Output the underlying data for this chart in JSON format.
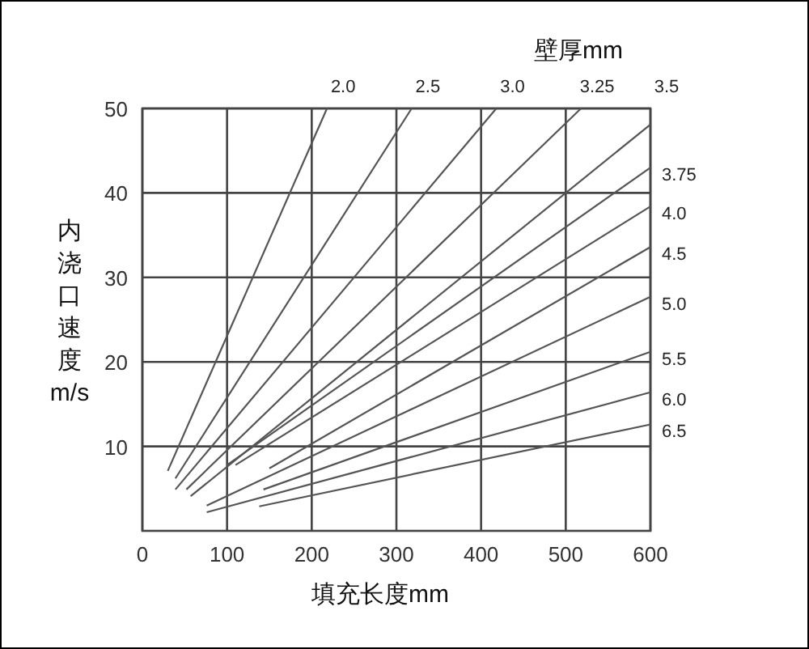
{
  "chart_data": {
    "type": "line",
    "xlabel": "填充长度mm",
    "ylabel": "内浇口速度m/s",
    "legend_title": "壁厚mm",
    "xlim": [
      0,
      600
    ],
    "xticks": [
      0,
      100,
      200,
      300,
      400,
      500,
      600
    ],
    "ylim": [
      0,
      50
    ],
    "yticks": [
      10,
      20,
      30,
      40,
      50
    ],
    "grid": true,
    "marker": "none",
    "line_style": "solid",
    "series": [
      {
        "name": "2.0",
        "color": "#555555",
        "x": [
          30,
          218
        ],
        "values": [
          7.1,
          50
        ]
      },
      {
        "name": "2.5",
        "color": "#555555",
        "x": [
          39,
          318
        ],
        "values": [
          6.2,
          50
        ]
      },
      {
        "name": "3.0",
        "color": "#555555",
        "x": [
          39,
          418
        ],
        "values": [
          4.9,
          50
        ]
      },
      {
        "name": "3.25",
        "color": "#555555",
        "x": [
          52,
          518
        ],
        "values": [
          4.9,
          50
        ]
      },
      {
        "name": "3.5",
        "color": "#555555",
        "x": [
          57,
          600
        ],
        "values": [
          4.1,
          48.1
        ]
      },
      {
        "name": "3.75",
        "color": "#555555",
        "x": [
          100,
          600
        ],
        "values": [
          7.8,
          43.0
        ]
      },
      {
        "name": "4.0",
        "color": "#555555",
        "x": [
          110,
          600
        ],
        "values": [
          7.8,
          38.4
        ]
      },
      {
        "name": "4.5",
        "color": "#555555",
        "x": [
          150,
          600
        ],
        "values": [
          7.4,
          33.6
        ]
      },
      {
        "name": "5.0",
        "color": "#555555",
        "x": [
          76,
          600
        ],
        "values": [
          3.0,
          27.7
        ]
      },
      {
        "name": "5.5",
        "color": "#555555",
        "x": [
          143,
          600
        ],
        "values": [
          4.9,
          21.2
        ]
      },
      {
        "name": "6.0",
        "color": "#555555",
        "x": [
          76,
          600
        ],
        "values": [
          2.2,
          16.4
        ]
      },
      {
        "name": "6.5",
        "color": "#555555",
        "x": [
          138,
          600
        ],
        "values": [
          2.9,
          12.6
        ]
      }
    ]
  }
}
